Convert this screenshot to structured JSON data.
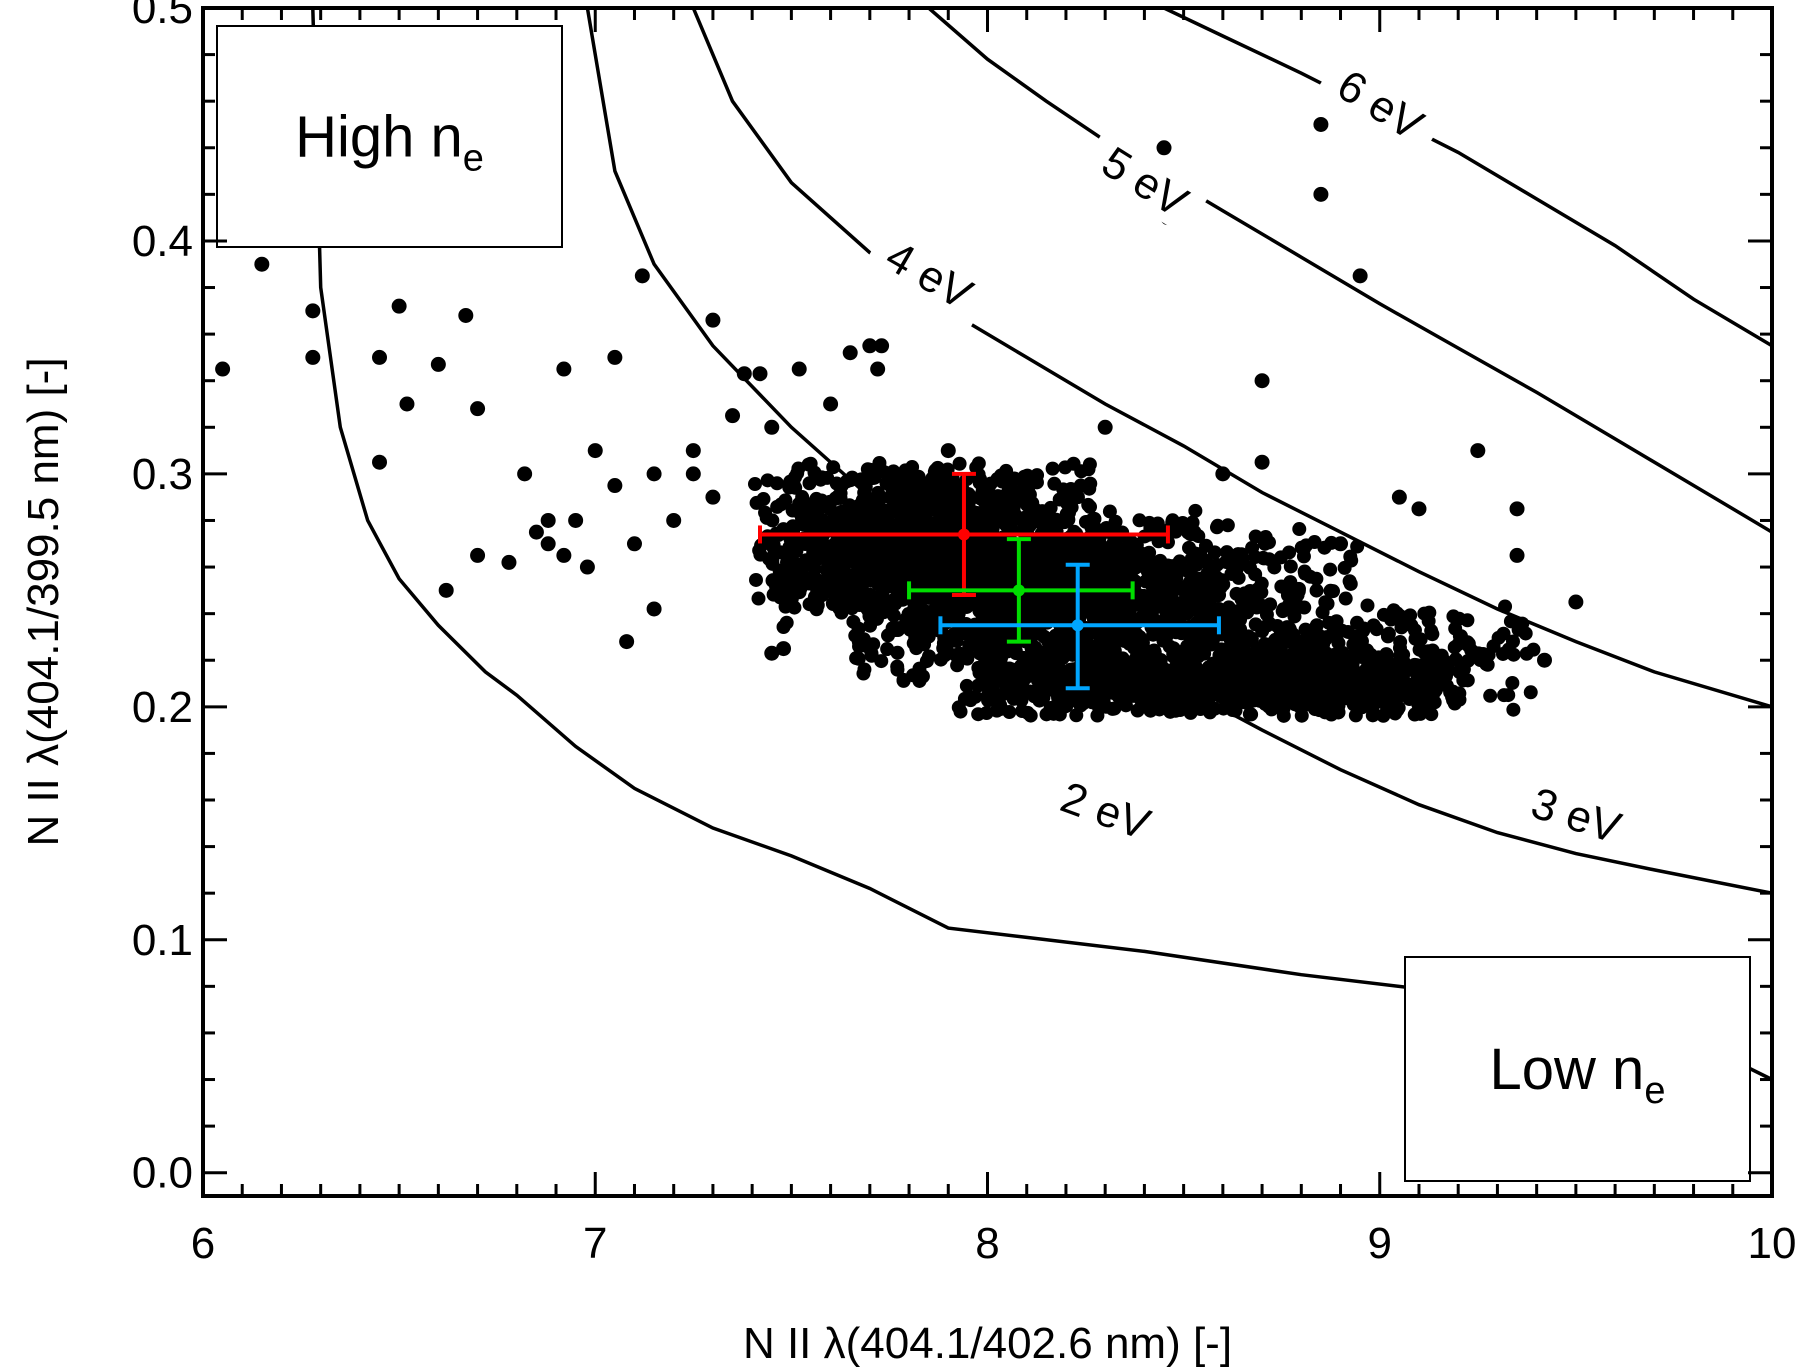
{
  "chart_data": {
    "type": "scatter",
    "title": "",
    "xlabel": "N II λ(404.1/402.6 nm) [-]",
    "ylabel": "N II λ(404.1/399.5 nm) [-]",
    "xlim": [
      6,
      10
    ],
    "ylim": [
      -0.01,
      0.5
    ],
    "xticks": [
      6,
      7,
      8,
      9,
      10
    ],
    "xtick_labels": [
      "6",
      "7",
      "8",
      "9",
      "10"
    ],
    "yticks": [
      0.0,
      0.1,
      0.2,
      0.3,
      0.4,
      0.5
    ],
    "ytick_labels": [
      "0.0",
      "0.1",
      "0.2",
      "0.3",
      "0.4",
      "0.5"
    ],
    "grid": false,
    "annotations": [
      {
        "main": "High n",
        "sub": "e",
        "position": "top-left"
      },
      {
        "main": "Low n",
        "sub": "e",
        "position": "bottom-right"
      }
    ],
    "curves": [
      {
        "label": "2 eV",
        "label_at": [
          8.3,
          0.155
        ],
        "label_angle": 20,
        "points": [
          [
            6.28,
            0.5
          ],
          [
            6.3,
            0.38
          ],
          [
            6.35,
            0.32
          ],
          [
            6.42,
            0.28
          ],
          [
            6.5,
            0.255
          ],
          [
            6.6,
            0.235
          ],
          [
            6.72,
            0.215
          ],
          [
            6.8,
            0.205
          ],
          [
            6.95,
            0.183
          ],
          [
            7.1,
            0.165
          ],
          [
            7.3,
            0.148
          ],
          [
            7.5,
            0.136
          ],
          [
            7.7,
            0.122
          ],
          [
            7.9,
            0.105
          ],
          [
            8.1,
            0.101
          ],
          [
            8.4,
            0.095
          ],
          [
            8.8,
            0.085
          ],
          [
            9.1,
            0.079
          ],
          [
            9.3,
            0.074
          ],
          [
            9.7,
            0.065
          ],
          [
            10.0,
            0.04
          ]
        ]
      },
      {
        "label": "3 eV",
        "label_at": [
          9.5,
          0.153
        ],
        "label_angle": 18,
        "points": [
          [
            6.98,
            0.5
          ],
          [
            7.05,
            0.43
          ],
          [
            7.15,
            0.39
          ],
          [
            7.3,
            0.355
          ],
          [
            7.5,
            0.32
          ],
          [
            7.7,
            0.29
          ],
          [
            7.9,
            0.265
          ],
          [
            8.1,
            0.245
          ],
          [
            8.3,
            0.225
          ],
          [
            8.5,
            0.208
          ],
          [
            8.7,
            0.19
          ],
          [
            8.9,
            0.173
          ],
          [
            9.1,
            0.158
          ],
          [
            9.3,
            0.146
          ],
          [
            9.5,
            0.137
          ],
          [
            9.7,
            0.13
          ],
          [
            10.0,
            0.12
          ]
        ]
      },
      {
        "label": "4 eV",
        "label_at": [
          7.85,
          0.385
        ],
        "label_angle": 30,
        "points": [
          [
            7.25,
            0.5
          ],
          [
            7.35,
            0.46
          ],
          [
            7.5,
            0.425
          ],
          [
            7.7,
            0.395
          ],
          [
            7.9,
            0.37
          ],
          [
            8.1,
            0.35
          ],
          [
            8.3,
            0.33
          ],
          [
            8.5,
            0.312
          ],
          [
            8.7,
            0.292
          ],
          [
            8.9,
            0.275
          ],
          [
            9.1,
            0.258
          ],
          [
            9.3,
            0.242
          ],
          [
            9.5,
            0.228
          ],
          [
            9.7,
            0.215
          ],
          [
            10.0,
            0.2
          ]
        ]
      },
      {
        "label": "5 eV",
        "label_at": [
          8.4,
          0.425
        ],
        "label_angle": 32,
        "points": [
          [
            7.85,
            0.5
          ],
          [
            8.0,
            0.478
          ],
          [
            8.15,
            0.46
          ],
          [
            8.3,
            0.443
          ],
          [
            8.45,
            0.428
          ],
          [
            8.6,
            0.413
          ],
          [
            8.8,
            0.393
          ],
          [
            9.0,
            0.373
          ],
          [
            9.2,
            0.354
          ],
          [
            9.4,
            0.335
          ],
          [
            9.6,
            0.315
          ],
          [
            9.8,
            0.295
          ],
          [
            10.0,
            0.275
          ]
        ]
      },
      {
        "label": "6 eV",
        "label_at": [
          9.0,
          0.458
        ],
        "label_angle": 32,
        "points": [
          [
            8.45,
            0.5
          ],
          [
            8.6,
            0.488
          ],
          [
            8.8,
            0.472
          ],
          [
            9.0,
            0.455
          ],
          [
            9.2,
            0.438
          ],
          [
            9.4,
            0.418
          ],
          [
            9.6,
            0.398
          ],
          [
            9.8,
            0.375
          ],
          [
            9.9,
            0.365
          ],
          [
            10.0,
            0.355
          ]
        ]
      }
    ],
    "error_points": [
      {
        "color": "#ff0000",
        "x": 7.94,
        "y": 0.274,
        "xerr": [
          7.42,
          8.46
        ],
        "yerr": [
          0.248,
          0.3
        ]
      },
      {
        "color": "#00dd00",
        "x": 8.08,
        "y": 0.25,
        "xerr": [
          7.8,
          8.37
        ],
        "yerr": [
          0.228,
          0.272
        ]
      },
      {
        "color": "#00a6ff",
        "x": 8.23,
        "y": 0.235,
        "xerr": [
          7.88,
          8.59
        ],
        "yerr": [
          0.208,
          0.261
        ]
      }
    ],
    "scatter": [
      [
        6.05,
        0.345
      ],
      [
        6.15,
        0.39
      ],
      [
        6.28,
        0.37
      ],
      [
        6.28,
        0.35
      ],
      [
        6.45,
        0.35
      ],
      [
        6.5,
        0.372
      ],
      [
        6.6,
        0.347
      ],
      [
        6.67,
        0.368
      ],
      [
        6.45,
        0.305
      ],
      [
        6.52,
        0.33
      ],
      [
        6.7,
        0.328
      ],
      [
        6.62,
        0.25
      ],
      [
        6.7,
        0.265
      ],
      [
        6.78,
        0.262
      ],
      [
        6.82,
        0.3
      ],
      [
        6.88,
        0.28
      ],
      [
        6.92,
        0.345
      ],
      [
        6.95,
        0.28
      ],
      [
        6.98,
        0.26
      ],
      [
        7.0,
        0.31
      ],
      [
        7.05,
        0.295
      ],
      [
        7.05,
        0.35
      ],
      [
        7.08,
        0.228
      ],
      [
        7.12,
        0.385
      ],
      [
        7.15,
        0.242
      ],
      [
        7.25,
        0.31
      ],
      [
        7.3,
        0.366
      ],
      [
        7.3,
        0.29
      ],
      [
        7.38,
        0.343
      ],
      [
        7.42,
        0.343
      ],
      [
        7.45,
        0.223
      ],
      [
        7.48,
        0.225
      ],
      [
        7.52,
        0.345
      ],
      [
        7.6,
        0.33
      ],
      [
        7.65,
        0.352
      ],
      [
        7.7,
        0.355
      ],
      [
        7.73,
        0.355
      ],
      [
        7.72,
        0.345
      ],
      [
        7.9,
        0.31
      ],
      [
        8.3,
        0.32
      ],
      [
        8.45,
        0.44
      ],
      [
        8.46,
        0.41
      ],
      [
        8.85,
        0.45
      ],
      [
        8.85,
        0.42
      ],
      [
        8.95,
        0.385
      ],
      [
        8.7,
        0.34
      ],
      [
        8.6,
        0.3
      ],
      [
        8.7,
        0.305
      ],
      [
        8.9,
        0.27
      ],
      [
        9.05,
        0.29
      ],
      [
        9.1,
        0.285
      ],
      [
        9.25,
        0.31
      ],
      [
        9.35,
        0.285
      ],
      [
        9.35,
        0.265
      ],
      [
        9.42,
        0.22
      ],
      [
        9.5,
        0.245
      ],
      [
        7.2,
        0.28
      ],
      [
        7.25,
        0.3
      ],
      [
        7.35,
        0.325
      ],
      [
        7.45,
        0.32
      ],
      [
        6.88,
        0.27
      ],
      [
        6.85,
        0.275
      ],
      [
        6.92,
        0.265
      ],
      [
        7.1,
        0.27
      ],
      [
        7.15,
        0.3
      ]
    ],
    "cluster_regions": [
      {
        "cx": 7.85,
        "cy": 0.275,
        "rx": 0.45,
        "ry": 0.03,
        "n": 900
      },
      {
        "cx": 8.3,
        "cy": 0.245,
        "rx": 0.65,
        "ry": 0.035,
        "n": 1100
      },
      {
        "cx": 8.55,
        "cy": 0.21,
        "rx": 0.65,
        "ry": 0.014,
        "n": 900
      },
      {
        "cx": 9.05,
        "cy": 0.22,
        "rx": 0.35,
        "ry": 0.025,
        "n": 250
      },
      {
        "cx": 8.0,
        "cy": 0.255,
        "rx": 0.55,
        "ry": 0.035,
        "n": 700
      }
    ],
    "marker_color": "#000000"
  }
}
